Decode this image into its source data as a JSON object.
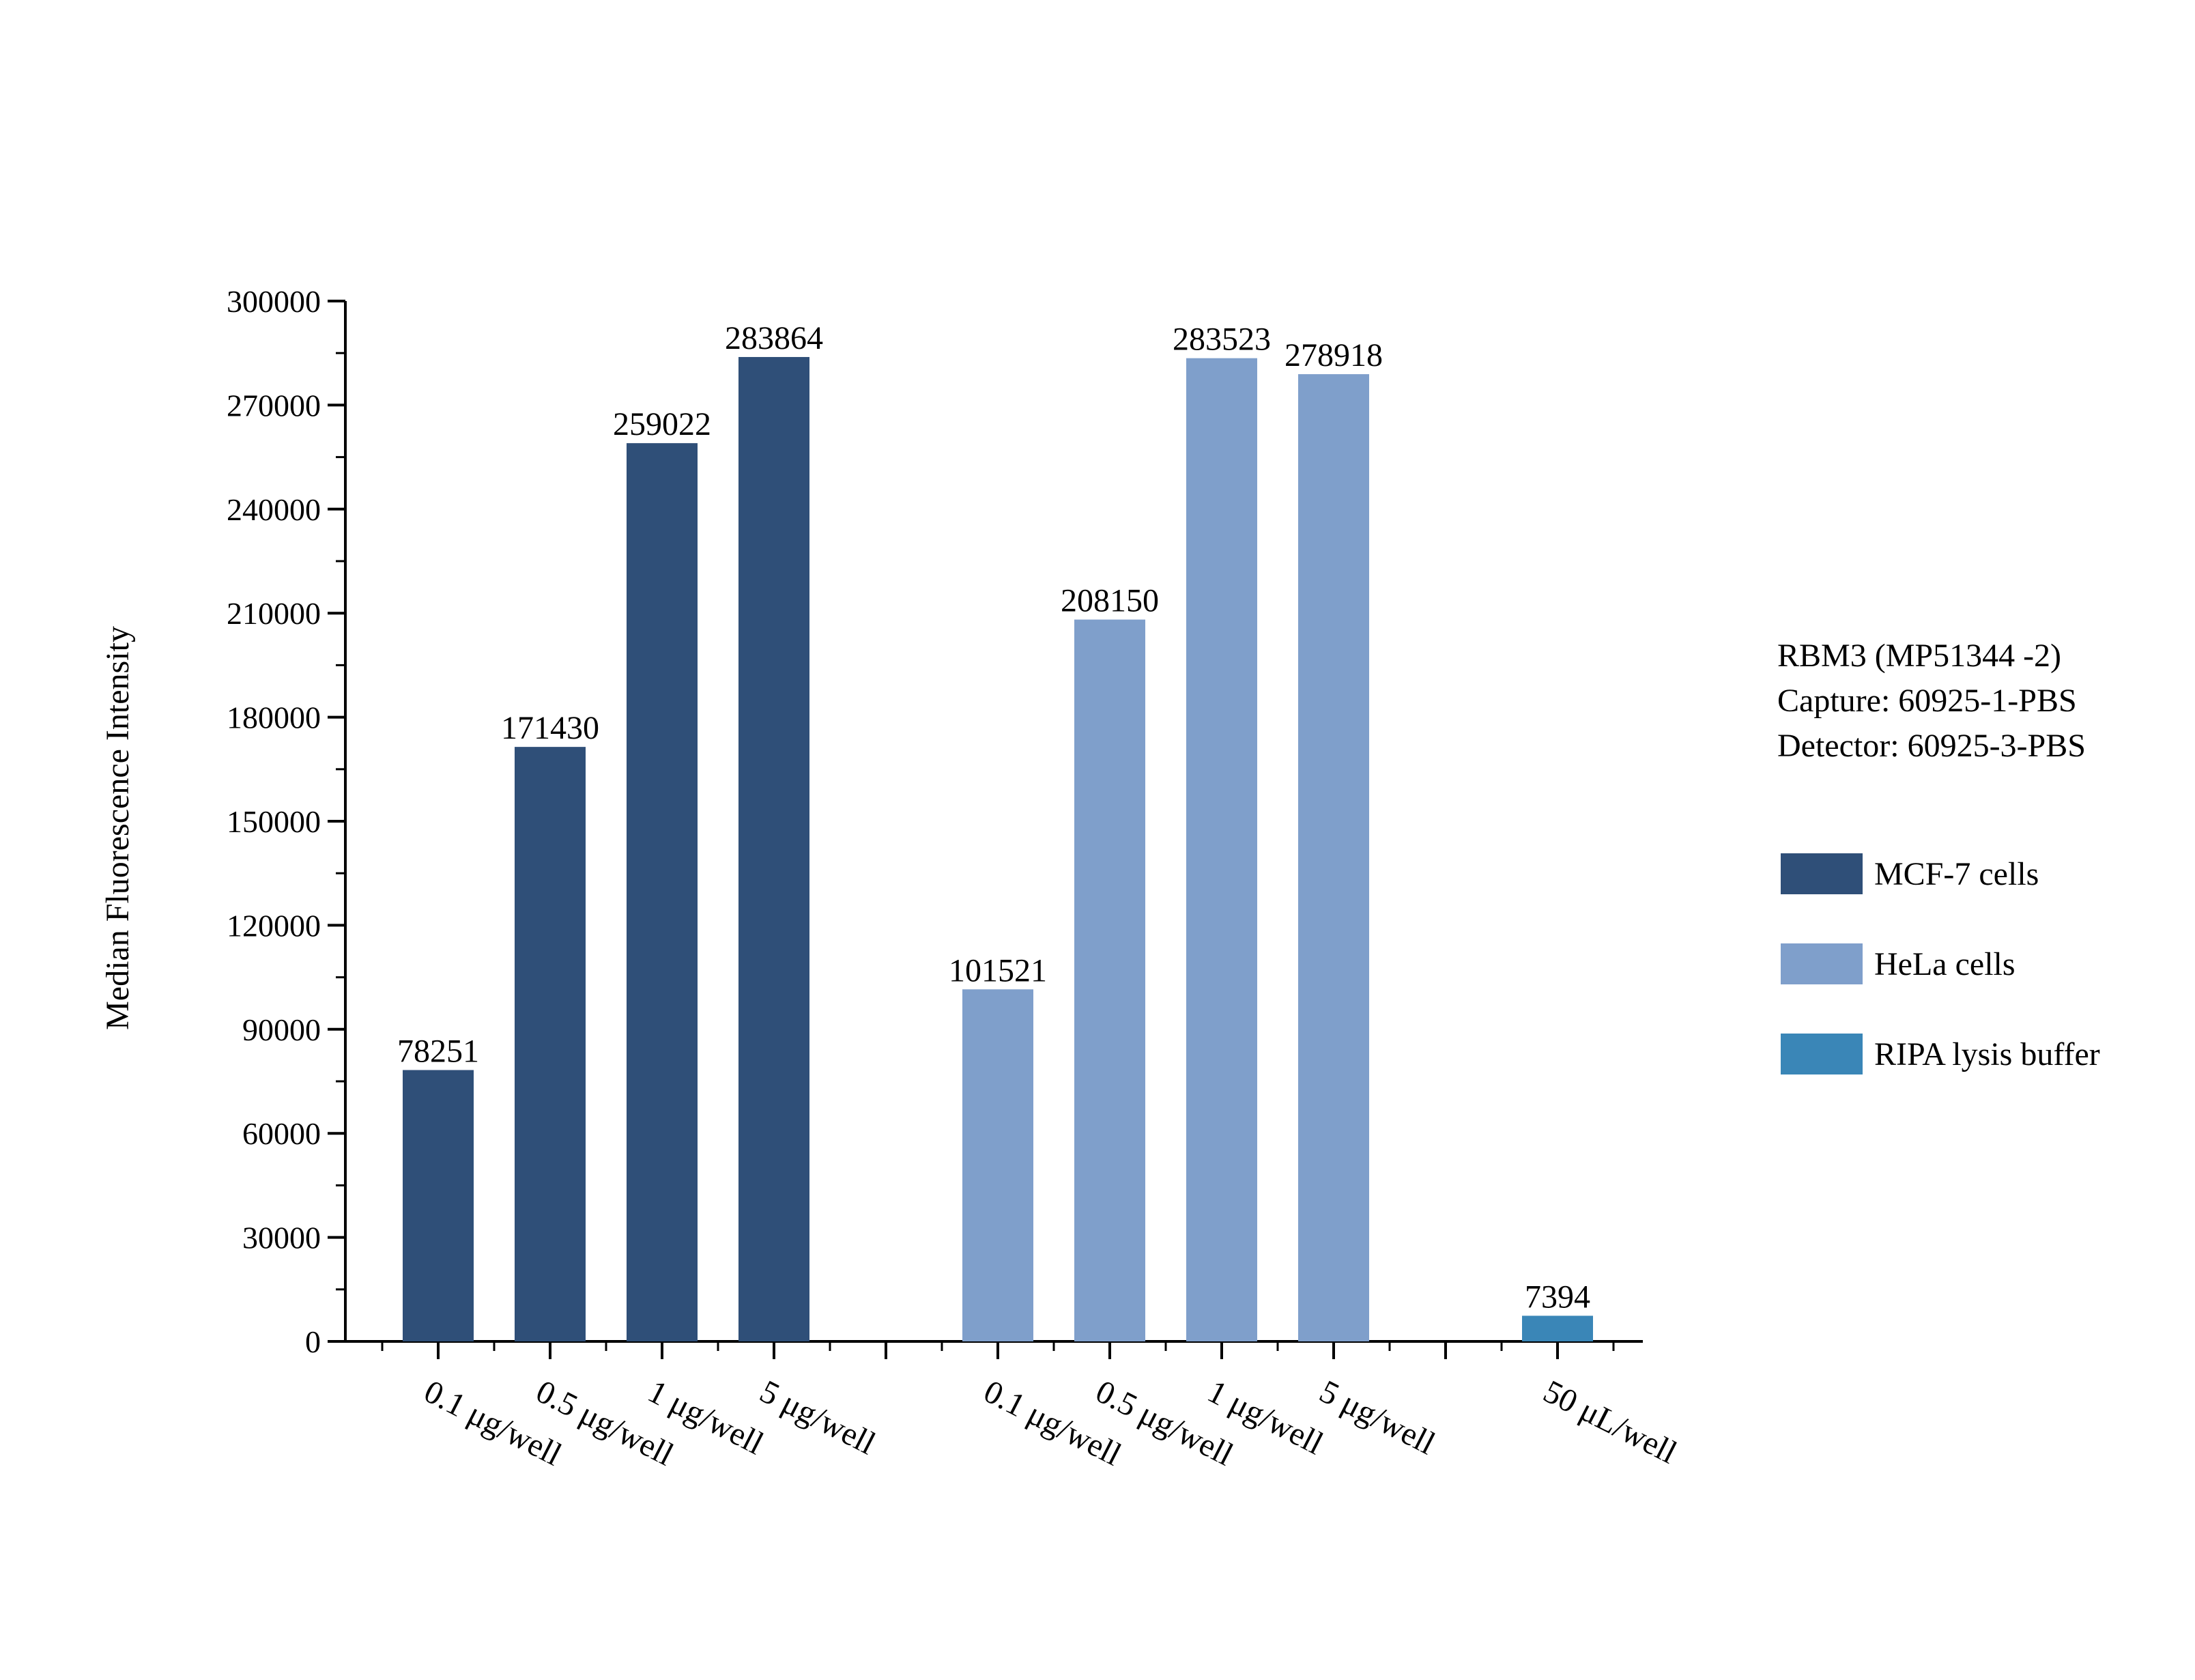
{
  "chart_data": {
    "type": "bar",
    "ylabel": "Median Fluorescence Intensity",
    "xlabel": "",
    "ylim": [
      0,
      300000
    ],
    "yticks": [
      0,
      30000,
      60000,
      90000,
      120000,
      150000,
      180000,
      210000,
      240000,
      270000,
      300000
    ],
    "groups": [
      {
        "series": "MCF-7 cells",
        "categories": [
          "0.1 μg/well",
          "0.5 μg/well",
          "1 μg/well",
          "5 μg/well"
        ],
        "values": [
          78251,
          171430,
          259022,
          283864
        ]
      },
      {
        "series": "HeLa cells",
        "categories": [
          "0.1 μg/well",
          "0.5 μg/well",
          "1 μg/well",
          "5 μg/well"
        ],
        "values": [
          101521,
          208150,
          283523,
          278918
        ]
      },
      {
        "series": "RIPA lysis buffer",
        "categories": [
          "50 μL/well"
        ],
        "values": [
          7394
        ]
      }
    ],
    "series": [
      {
        "name": "MCF-7 cells",
        "color": "#2f4f78"
      },
      {
        "name": "HeLa cells",
        "color": "#7f9fcb"
      },
      {
        "name": "RIPA lysis buffer",
        "color": "#3a86b7"
      }
    ],
    "annotation": [
      "RBM3 (MP51344 -2)",
      "Capture: 60925-1-PBS",
      "Detector: 60925-3-PBS"
    ],
    "legend_position": "right",
    "grid": false
  }
}
